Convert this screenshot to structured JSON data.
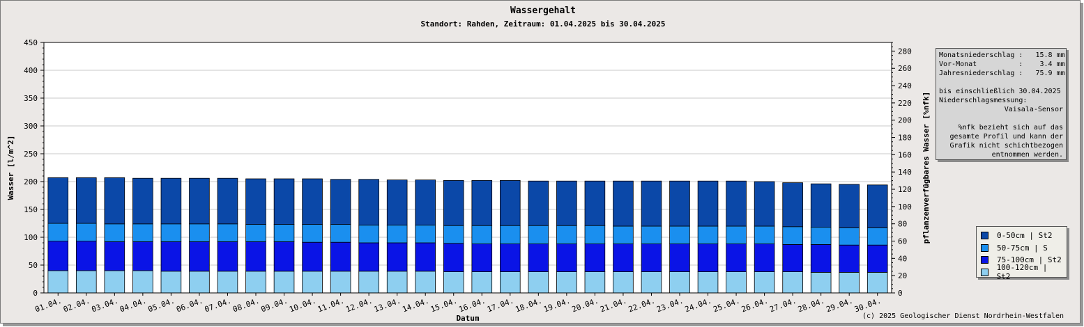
{
  "title": "Wassergehalt",
  "subtitle": "Standort: Rahden, Zeitraum: 01.04.2025 bis 30.04.2025",
  "copyright": "(c) 2025 Geologischer Dienst Nordrhein-Westfalen",
  "info": {
    "line1": "Monatsniederschlag :   15.8 mm",
    "line2": "Vor-Monat          :    3.4 mm",
    "line3": "Jahresniederschlag :   75.9 mm",
    "line4": "bis einschließlich 30.04.2025",
    "line5": "Niederschlagsmessung:",
    "line6": "Vaisala-Sensor",
    "line7": "%nfk bezieht sich auf das",
    "line8": "gesamte Profil und kann der",
    "line9": "Grafik nicht schichtbezogen",
    "line10": "entnommen werden."
  },
  "colors": {
    "plot_background": "#ffffff",
    "grid": "#c8c8c8",
    "layer_0_50": "#0b48a8",
    "layer_50_75": "#1a8fef",
    "layer_75_100": "#0a14e6",
    "layer_100_120": "#8ecff0"
  },
  "chart_data": {
    "type": "bar",
    "stacked": true,
    "xlabel": "Datum",
    "ylabel": "Wasser [l/m^2]",
    "y2label": "pflanzenverfügbares Wasser [%nfk]",
    "ylim": [
      0,
      450
    ],
    "y_ticks": [
      0,
      50,
      100,
      150,
      200,
      250,
      300,
      350,
      400,
      450
    ],
    "y2lim": [
      0,
      290
    ],
    "y2_ticks": [
      0,
      20,
      40,
      60,
      80,
      100,
      120,
      140,
      160,
      180,
      200,
      220,
      240,
      260,
      280
    ],
    "grid": true,
    "legend_position": "right",
    "categories": [
      "01.04.",
      "02.04.",
      "03.04.",
      "04.04.",
      "05.04.",
      "06.04.",
      "07.04.",
      "08.04.",
      "09.04.",
      "10.04.",
      "11.04.",
      "12.04.",
      "13.04.",
      "14.04.",
      "15.04.",
      "16.04.",
      "17.04.",
      "18.04.",
      "19.04.",
      "20.04.",
      "21.04.",
      "22.04.",
      "23.04.",
      "24.04.",
      "25.04.",
      "26.04.",
      "27.04.",
      "28.04.",
      "29.04.",
      "30.04."
    ],
    "series": [
      {
        "name": "100-120cm | St2",
        "color": "#8ecff0",
        "values": [
          40,
          40,
          40,
          40,
          39,
          39,
          39,
          39,
          39,
          39,
          39,
          39,
          39,
          39,
          38,
          38,
          38,
          38,
          38,
          38,
          38,
          38,
          38,
          38,
          38,
          38,
          38,
          37,
          37,
          37
        ]
      },
      {
        "name": "75-100cm | St2",
        "color": "#0a14e6",
        "values": [
          53,
          53,
          52,
          52,
          53,
          53,
          53,
          53,
          53,
          52,
          52,
          51,
          51,
          51,
          51,
          50,
          50,
          50,
          50,
          50,
          50,
          50,
          50,
          50,
          50,
          50,
          49,
          50,
          49,
          49
        ]
      },
      {
        "name": "50-75cm | S",
        "color": "#1a8fef",
        "values": [
          32,
          32,
          32,
          32,
          32,
          32,
          32,
          31,
          31,
          32,
          32,
          32,
          32,
          32,
          32,
          33,
          33,
          33,
          33,
          33,
          32,
          32,
          32,
          32,
          32,
          32,
          32,
          31,
          31,
          31
        ]
      },
      {
        "name": "0-50cm | St2",
        "color": "#0b48a8",
        "values": [
          82,
          82,
          83,
          82,
          82,
          82,
          82,
          82,
          82,
          82,
          81,
          82,
          81,
          81,
          81,
          81,
          81,
          80,
          80,
          80,
          81,
          81,
          81,
          81,
          81,
          80,
          79,
          78,
          78,
          77
        ]
      }
    ],
    "legend": [
      {
        "label": "0-50cm | St2",
        "color": "#0b48a8"
      },
      {
        "label": "50-75cm | S",
        "color": "#1a8fef"
      },
      {
        "label": "75-100cm | St2",
        "color": "#0a14e6"
      },
      {
        "label": "100-120cm | St2",
        "color": "#8ecff0"
      }
    ]
  }
}
